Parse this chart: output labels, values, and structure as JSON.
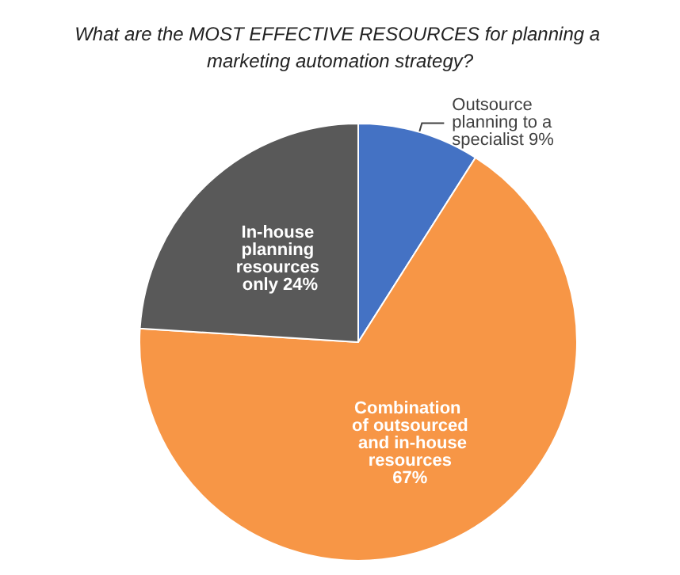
{
  "chart_data": {
    "type": "pie",
    "title": "What are the MOST EFFECTIVE RESOURCES for planning a marketing automation strategy?",
    "categories": [
      "Outsource planning to a specialist",
      "Combination of outsourced and in-house resources",
      "In-house planning resources only"
    ],
    "values": [
      9,
      67,
      24
    ],
    "colors": [
      "#4472c4",
      "#f79646",
      "#595959"
    ],
    "value_labels": [
      "9%",
      "67%",
      "24%"
    ],
    "legend": false
  }
}
